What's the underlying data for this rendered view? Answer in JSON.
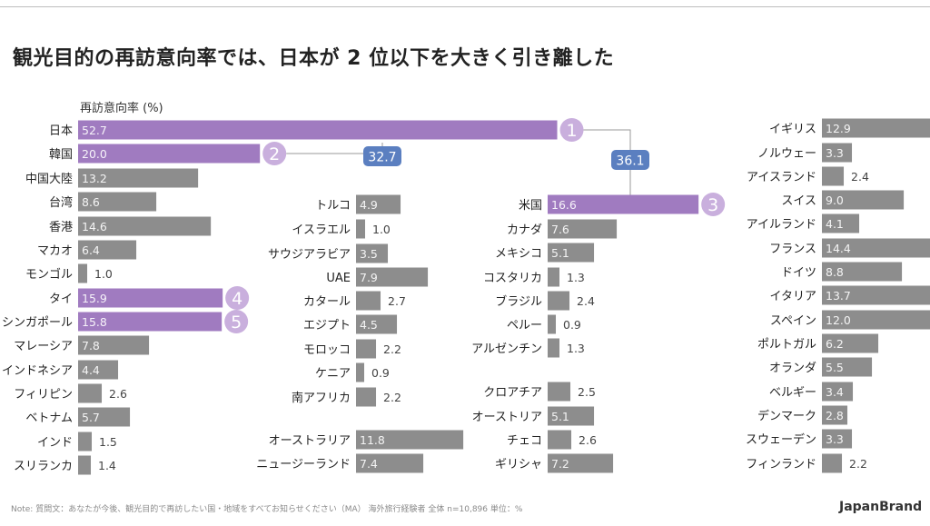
{
  "title": "観光目的の再訪意向率では、日本が 2 位以下を大きく引き離した",
  "note": "Note: 質問文：あなたが今後、観光目的で再訪したい国・地域をすべてお知らせください（MA） 海外旅行経験者 全体 n=10,896 単位：%",
  "brand": "JapanBrand",
  "colors": {
    "highlight": "#a07bc0",
    "bar": "#8d8d8d",
    "rankCircle": "#c9afdd",
    "diffBadge": "#5b7fc0"
  },
  "chart_data": {
    "type": "bar",
    "ylabel": "再訪意向率 (%)",
    "groups": [
      {
        "categories": [
          "日本",
          "韓国",
          "中国大陸",
          "台湾",
          "香港",
          "マカオ",
          "モンゴル",
          "タイ",
          "シンガポール",
          "マレーシア",
          "インドネシア",
          "フィリピン",
          "ベトナム",
          "インド",
          "スリランカ"
        ],
        "values": [
          52.7,
          20.0,
          13.2,
          8.6,
          14.6,
          6.4,
          1.0,
          15.9,
          15.8,
          7.8,
          4.4,
          2.6,
          5.7,
          1.5,
          1.4
        ],
        "value_labels": [
          "52.7",
          "20.0",
          "13.2",
          "8.6",
          "14.6",
          "6.4",
          "1.0",
          "15.9",
          "15.8",
          "7.8",
          "4.4",
          "2.6",
          "5.7",
          "1.5",
          "1.4"
        ],
        "ranks": {
          "日本": "1",
          "韓国": "2",
          "タイ": "4",
          "シンガポール": "5"
        }
      },
      {
        "categories": [
          "トルコ",
          "イスラエル",
          "サウジアラビア",
          "UAE",
          "カタール",
          "エジプト",
          "モロッコ",
          "ケニア",
          "南アフリカ",
          "オーストラリア",
          "ニュージーランド"
        ],
        "values": [
          4.9,
          1.0,
          3.5,
          7.9,
          2.7,
          4.5,
          2.2,
          0.9,
          2.2,
          11.8,
          7.4
        ],
        "value_labels": [
          "4.9",
          "1.0",
          "3.5",
          "7.9",
          "2.7",
          "4.5",
          "2.2",
          "0.9",
          "2.2",
          "11.8",
          "7.4"
        ]
      },
      {
        "categories": [
          "米国",
          "カナダ",
          "メキシコ",
          "コスタリカ",
          "ブラジル",
          "ペルー",
          "アルゼンチン",
          "クロアチア",
          "オーストリア",
          "チェコ",
          "ギリシャ"
        ],
        "values": [
          16.6,
          7.6,
          5.1,
          1.3,
          2.4,
          0.9,
          1.3,
          2.5,
          5.1,
          2.6,
          7.2
        ],
        "value_labels": [
          "16.6",
          "7.6",
          "5.1",
          "1.3",
          "2.4",
          "0.9",
          "1.3",
          "2.5",
          "5.1",
          "2.6",
          "7.2"
        ],
        "ranks": {
          "米国": "3"
        }
      },
      {
        "categories": [
          "イギリス",
          "ノルウェー",
          "アイスランド",
          "スイス",
          "アイルランド",
          "フランス",
          "ドイツ",
          "イタリア",
          "スペイン",
          "ポルトガル",
          "オランダ",
          "ベルギー",
          "デンマーク",
          "スウェーデン",
          "フィンランド"
        ],
        "values": [
          12.9,
          3.3,
          2.4,
          9.0,
          4.1,
          14.4,
          8.8,
          13.7,
          12.0,
          6.2,
          5.5,
          3.4,
          2.8,
          3.3,
          2.2
        ],
        "value_labels": [
          "12.9",
          "3.3",
          "2.4",
          "9.0",
          "4.1",
          "14.4",
          "8.8",
          "13.7",
          "12.0",
          "6.2",
          "5.5",
          "3.4",
          "2.8",
          "3.3",
          "2.2"
        ]
      }
    ],
    "highlighted": [
      "日本",
      "韓国",
      "タイ",
      "シンガポール",
      "米国"
    ],
    "differences": [
      {
        "from": "日本",
        "to": "韓国",
        "value": "32.7"
      },
      {
        "from": "日本",
        "to": "米国",
        "value": "36.1"
      }
    ]
  }
}
